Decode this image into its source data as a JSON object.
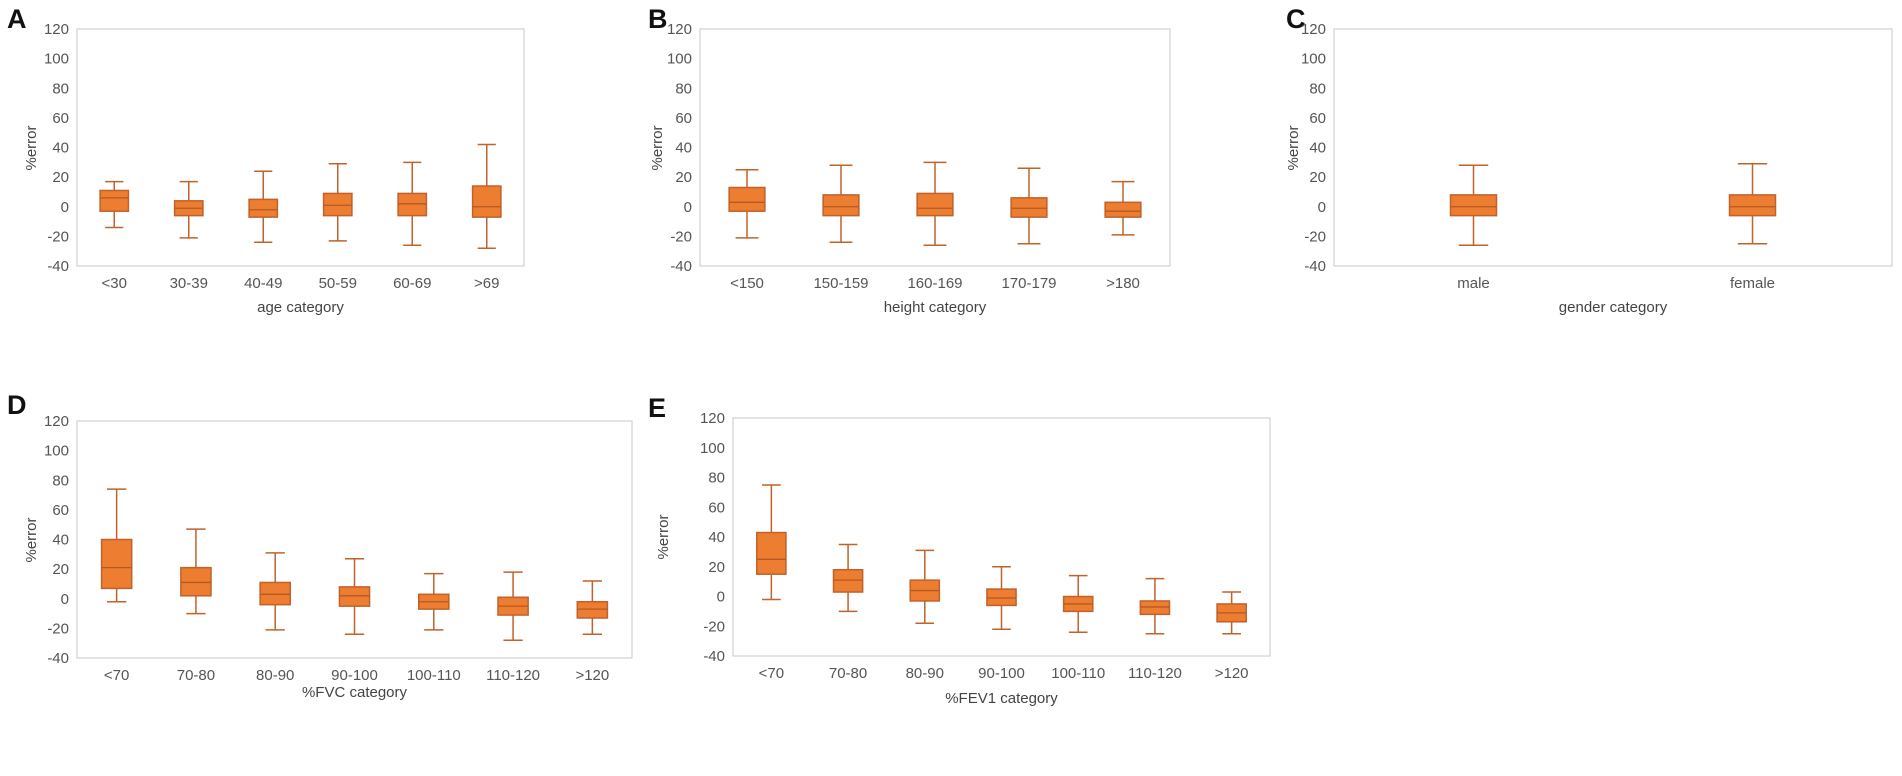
{
  "chart_data": [
    {
      "panel": "A",
      "type": "box",
      "title": "",
      "xlabel": "age category",
      "ylabel": "%error",
      "ylim": [
        -40,
        120
      ],
      "yticks": [
        -40,
        -20,
        0,
        20,
        40,
        60,
        80,
        100,
        120
      ],
      "box_color": "#ED7D31",
      "categories": [
        "<30",
        "30-39",
        "40-49",
        "50-59",
        "60-69",
        ">69"
      ],
      "boxes": [
        {
          "min": -14,
          "q1": -3,
          "median": 6,
          "q3": 11,
          "max": 17
        },
        {
          "min": -21,
          "q1": -6,
          "median": -1,
          "q3": 4,
          "max": 17
        },
        {
          "min": -24,
          "q1": -7,
          "median": -2,
          "q3": 5,
          "max": 24
        },
        {
          "min": -23,
          "q1": -6,
          "median": 1,
          "q3": 9,
          "max": 29
        },
        {
          "min": -26,
          "q1": -6,
          "median": 2,
          "q3": 9,
          "max": 30
        },
        {
          "min": -28,
          "q1": -7,
          "median": 0,
          "q3": 14,
          "max": 42
        }
      ]
    },
    {
      "panel": "B",
      "type": "box",
      "title": "",
      "xlabel": "height category",
      "ylabel": "%error",
      "ylim": [
        -40,
        120
      ],
      "yticks": [
        -40,
        -20,
        0,
        20,
        40,
        60,
        80,
        100,
        120
      ],
      "box_color": "#ED7D31",
      "categories": [
        "<150",
        "150-159",
        "160-169",
        "170-179",
        ">180"
      ],
      "boxes": [
        {
          "min": -21,
          "q1": -3,
          "median": 3,
          "q3": 13,
          "max": 25
        },
        {
          "min": -24,
          "q1": -6,
          "median": 0,
          "q3": 8,
          "max": 28
        },
        {
          "min": -26,
          "q1": -6,
          "median": -1,
          "q3": 9,
          "max": 30
        },
        {
          "min": -25,
          "q1": -7,
          "median": -1,
          "q3": 6,
          "max": 26
        },
        {
          "min": -19,
          "q1": -7,
          "median": -3,
          "q3": 3,
          "max": 17
        }
      ]
    },
    {
      "panel": "C",
      "type": "box",
      "title": "",
      "xlabel": "gender category",
      "ylabel": "%error",
      "ylim": [
        -40,
        120
      ],
      "yticks": [
        -40,
        -20,
        0,
        20,
        40,
        60,
        80,
        100,
        120
      ],
      "box_color": "#ED7D31",
      "categories": [
        "male",
        "female"
      ],
      "boxes": [
        {
          "min": -26,
          "q1": -6,
          "median": 0,
          "q3": 8,
          "max": 28
        },
        {
          "min": -25,
          "q1": -6,
          "median": 0,
          "q3": 8,
          "max": 29
        }
      ]
    },
    {
      "panel": "D",
      "type": "box",
      "title": "",
      "xlabel": "%FVC category",
      "ylabel": "%error",
      "ylim": [
        -40,
        120
      ],
      "yticks": [
        -40,
        -20,
        0,
        20,
        40,
        60,
        80,
        100,
        120
      ],
      "box_color": "#ED7D31",
      "categories": [
        "<70",
        "70-80",
        "80-90",
        "90-100",
        "100-110",
        "110-120",
        ">120"
      ],
      "boxes": [
        {
          "min": -2,
          "q1": 7,
          "median": 21,
          "q3": 40,
          "max": 74
        },
        {
          "min": -10,
          "q1": 2,
          "median": 11,
          "q3": 21,
          "max": 47
        },
        {
          "min": -21,
          "q1": -4,
          "median": 3,
          "q3": 11,
          "max": 31
        },
        {
          "min": -24,
          "q1": -5,
          "median": 2,
          "q3": 8,
          "max": 27
        },
        {
          "min": -21,
          "q1": -7,
          "median": -2,
          "q3": 3,
          "max": 17
        },
        {
          "min": -28,
          "q1": -11,
          "median": -5,
          "q3": 1,
          "max": 18
        },
        {
          "min": -24,
          "q1": -13,
          "median": -7,
          "q3": -2,
          "max": 12
        }
      ]
    },
    {
      "panel": "E",
      "type": "box",
      "title": "",
      "xlabel": "%FEV1 category",
      "ylabel": "%error",
      "ylim": [
        -40,
        120
      ],
      "yticks": [
        -40,
        -20,
        0,
        20,
        40,
        60,
        80,
        100,
        120
      ],
      "box_color": "#ED7D31",
      "categories": [
        "<70",
        "70-80",
        "80-90",
        "90-100",
        "100-110",
        "110-120",
        ">120"
      ],
      "boxes": [
        {
          "min": -2,
          "q1": 15,
          "median": 25,
          "q3": 43,
          "max": 75
        },
        {
          "min": -10,
          "q1": 3,
          "median": 11,
          "q3": 18,
          "max": 35
        },
        {
          "min": -18,
          "q1": -3,
          "median": 4,
          "q3": 11,
          "max": 31
        },
        {
          "min": -22,
          "q1": -6,
          "median": -1,
          "q3": 5,
          "max": 20
        },
        {
          "min": -24,
          "q1": -10,
          "median": -5,
          "q3": 0,
          "max": 14
        },
        {
          "min": -25,
          "q1": -12,
          "median": -7,
          "q3": -3,
          "max": 12
        },
        {
          "min": -25,
          "q1": -17,
          "median": -11,
          "q3": -5,
          "max": 3
        }
      ]
    }
  ]
}
